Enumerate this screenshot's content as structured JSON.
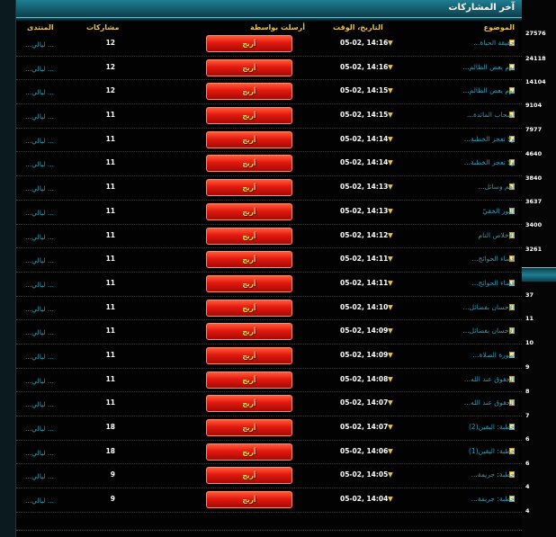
{
  "header": {
    "title": "آخر المشاركات"
  },
  "columns": {
    "topic": "الموضوع",
    "datetime": "التاريخ، الوقت",
    "poster": "أرسلت بواسطة",
    "posts": "مشاركات",
    "forum": "المنتدى"
  },
  "rows": [
    {
      "topic": "حقيقة الحياة...",
      "datetime": "05-02, 14:16",
      "poster": "أريج",
      "posts": "12",
      "forum": "... ليالي..."
    },
    {
      "topic": "يوم يعض الظالم...",
      "datetime": "05-02, 14:16",
      "poster": "أريج",
      "posts": "12",
      "forum": "... ليالي..."
    },
    {
      "topic": "يوم يعض الظالم...",
      "datetime": "05-02, 14:15",
      "poster": "أريج",
      "posts": "12",
      "forum": "... ليالي..."
    },
    {
      "topic": "أصحاب المائدة...",
      "datetime": "05-02, 14:15",
      "poster": "أريج",
      "posts": "11",
      "forum": "... ليالي..."
    },
    {
      "topic": "ولا تعجز الخطبة...",
      "datetime": "05-02, 14:14",
      "poster": "أريج",
      "posts": "11",
      "forum": "... ليالي..."
    },
    {
      "topic": "ولا تعجز الخطبة...",
      "datetime": "05-02, 14:14",
      "poster": "أريج",
      "posts": "11",
      "forum": "... ليالي..."
    },
    {
      "topic": "أهم وسائل...",
      "datetime": "05-02, 14:13",
      "poster": "أريج",
      "posts": "11",
      "forum": "... ليالي..."
    },
    {
      "topic": "النور الخفيّ",
      "datetime": "05-02, 14:13",
      "poster": "أريج",
      "posts": "11",
      "forum": "... ليالي..."
    },
    {
      "topic": "الإخلاص التام",
      "datetime": "05-02, 14:12",
      "poster": "أريج",
      "posts": "11",
      "forum": "... ليالي..."
    },
    {
      "topic": "قضاء الحوائج...",
      "datetime": "05-02, 14:11",
      "poster": "أريج",
      "posts": "11",
      "forum": "... ليالي..."
    },
    {
      "topic": "قضاء الحوائج...",
      "datetime": "05-02, 14:11",
      "poster": "أريج",
      "posts": "11",
      "forum": "... ليالي..."
    },
    {
      "topic": "الإحسان بفضائل...",
      "datetime": "05-02, 14:10",
      "poster": "أريج",
      "posts": "11",
      "forum": "... ليالي..."
    },
    {
      "topic": "الإحسان بفضائل...",
      "datetime": "05-02, 14:09",
      "poster": "أريج",
      "posts": "11",
      "forum": "... ليالي..."
    },
    {
      "topic": "صورة الصلاة...",
      "datetime": "05-02, 14:09",
      "poster": "أريج",
      "posts": "11",
      "forum": "... ليالي..."
    },
    {
      "topic": "الحقوق عند الله...",
      "datetime": "05-02, 14:08",
      "poster": "أريج",
      "posts": "11",
      "forum": "... ليالي..."
    },
    {
      "topic": "الحقوق عند الله...",
      "datetime": "05-02, 14:07",
      "poster": "أريج",
      "posts": "11",
      "forum": "... ليالي..."
    },
    {
      "topic": "خطبة: اليقين(2)",
      "datetime": "05-02, 14:07",
      "poster": "أريج",
      "posts": "18",
      "forum": "... ليالي..."
    },
    {
      "topic": "خطبة: اليقين(1)",
      "datetime": "05-02, 14:06",
      "poster": "أريج",
      "posts": "18",
      "forum": "... ليالي..."
    },
    {
      "topic": "خطبة: جريمة...",
      "datetime": "05-02, 14:05",
      "poster": "أريج",
      "posts": "9",
      "forum": "... ليالي..."
    },
    {
      "topic": "خطبة: جريمة...",
      "datetime": "05-02, 14:04",
      "poster": "أريج",
      "posts": "9",
      "forum": "... ليالي..."
    }
  ],
  "right_column_numbers": [
    "27576",
    "24118",
    "14104",
    "9104",
    "7977",
    "4640",
    "3840",
    "3637",
    "3400",
    "3261",
    "37",
    "11",
    "10",
    "9",
    "8",
    "7",
    "6",
    "6",
    "4",
    "4"
  ],
  "icons": {
    "topic_icon": "document-icon",
    "sort_icon": "triangle-down-icon"
  },
  "colors": {
    "accent": "#e8c24a",
    "link": "#2e9bb5",
    "header": "#1f7e92",
    "button": "#e3180e"
  }
}
